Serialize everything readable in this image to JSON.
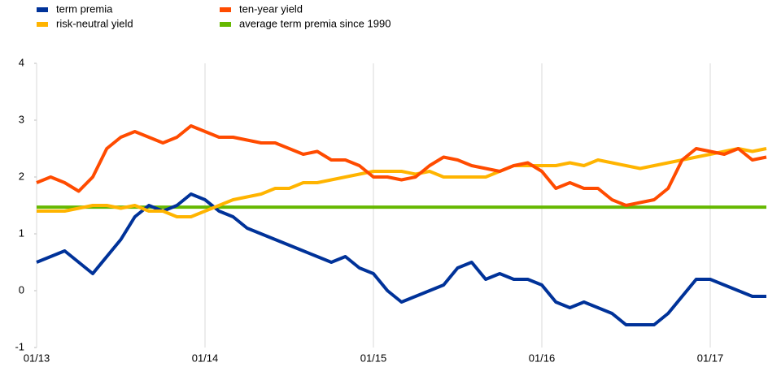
{
  "chart_data": {
    "type": "line",
    "categories": [
      "01/13",
      "02/13",
      "03/13",
      "04/13",
      "05/13",
      "06/13",
      "07/13",
      "08/13",
      "09/13",
      "10/13",
      "11/13",
      "12/13",
      "01/14",
      "02/14",
      "03/14",
      "04/14",
      "05/14",
      "06/14",
      "07/14",
      "08/14",
      "09/14",
      "10/14",
      "11/14",
      "12/14",
      "01/15",
      "02/15",
      "03/15",
      "04/15",
      "05/15",
      "06/15",
      "07/15",
      "08/15",
      "09/15",
      "10/15",
      "11/15",
      "12/15",
      "01/16",
      "02/16",
      "03/16",
      "04/16",
      "05/16",
      "06/16",
      "07/16",
      "08/16",
      "09/16",
      "10/16",
      "11/16",
      "12/16",
      "01/17",
      "02/17",
      "03/17",
      "04/17",
      "05/17"
    ],
    "xticks": [
      "01/13",
      "01/14",
      "01/15",
      "01/16",
      "01/17"
    ],
    "series": [
      {
        "name": "term premia",
        "color": "#003299",
        "values": [
          0.5,
          0.6,
          0.7,
          0.5,
          0.3,
          0.6,
          0.9,
          1.3,
          1.5,
          1.4,
          1.5,
          1.7,
          1.6,
          1.4,
          1.3,
          1.1,
          1.0,
          0.9,
          0.8,
          0.7,
          0.6,
          0.5,
          0.6,
          0.4,
          0.3,
          0.0,
          -0.2,
          -0.1,
          0.0,
          0.1,
          0.4,
          0.5,
          0.2,
          0.3,
          0.2,
          0.2,
          0.1,
          -0.2,
          -0.3,
          -0.2,
          -0.3,
          -0.4,
          -0.6,
          -0.6,
          -0.6,
          -0.4,
          -0.1,
          0.2,
          0.2,
          0.1,
          0.0,
          -0.1,
          -0.1
        ]
      },
      {
        "name": "risk-neutral yield",
        "color": "#ffb400",
        "values": [
          1.4,
          1.4,
          1.4,
          1.45,
          1.5,
          1.5,
          1.45,
          1.5,
          1.4,
          1.4,
          1.3,
          1.3,
          1.4,
          1.5,
          1.6,
          1.65,
          1.7,
          1.8,
          1.8,
          1.9,
          1.9,
          1.95,
          2.0,
          2.05,
          2.1,
          2.1,
          2.1,
          2.05,
          2.1,
          2.0,
          2.0,
          2.0,
          2.0,
          2.1,
          2.2,
          2.2,
          2.2,
          2.2,
          2.25,
          2.2,
          2.3,
          2.25,
          2.2,
          2.15,
          2.2,
          2.25,
          2.3,
          2.35,
          2.4,
          2.45,
          2.5,
          2.45,
          2.5
        ]
      },
      {
        "name": "ten-year yield",
        "color": "#ff4b00",
        "values": [
          1.9,
          2.0,
          1.9,
          1.75,
          2.0,
          2.5,
          2.7,
          2.8,
          2.7,
          2.6,
          2.7,
          2.9,
          2.8,
          2.7,
          2.7,
          2.65,
          2.6,
          2.6,
          2.5,
          2.4,
          2.45,
          2.3,
          2.3,
          2.2,
          2.0,
          2.0,
          1.95,
          2.0,
          2.2,
          2.35,
          2.3,
          2.2,
          2.15,
          2.1,
          2.2,
          2.25,
          2.1,
          1.8,
          1.9,
          1.8,
          1.8,
          1.6,
          1.5,
          1.55,
          1.6,
          1.8,
          2.3,
          2.5,
          2.45,
          2.4,
          2.5,
          2.3,
          2.35
        ]
      },
      {
        "name": "average term premia since 1990",
        "color": "#65b800",
        "values": [
          1.47,
          1.47,
          1.47,
          1.47,
          1.47,
          1.47,
          1.47,
          1.47,
          1.47,
          1.47,
          1.47,
          1.47,
          1.47,
          1.47,
          1.47,
          1.47,
          1.47,
          1.47,
          1.47,
          1.47,
          1.47,
          1.47,
          1.47,
          1.47,
          1.47,
          1.47,
          1.47,
          1.47,
          1.47,
          1.47,
          1.47,
          1.47,
          1.47,
          1.47,
          1.47,
          1.47,
          1.47,
          1.47,
          1.47,
          1.47,
          1.47,
          1.47,
          1.47,
          1.47,
          1.47,
          1.47,
          1.47,
          1.47,
          1.47,
          1.47,
          1.47,
          1.47,
          1.47
        ]
      }
    ],
    "ylim": [
      -1,
      4
    ],
    "yticks": [
      -1,
      0,
      1,
      2,
      3,
      4
    ],
    "grid": true
  }
}
